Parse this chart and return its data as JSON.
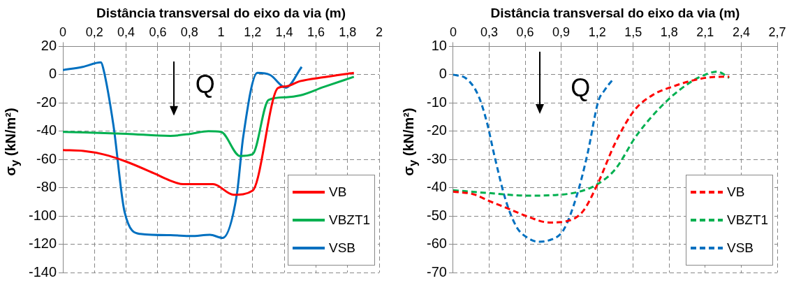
{
  "chart_data": [
    {
      "type": "line",
      "xlabel": "Distância transversal do eixo da via (m)",
      "ylabel": "σ$_{y}$ (kN/m²)",
      "annotations": [
        "Q"
      ],
      "xlim": [
        0,
        2
      ],
      "xticks": [
        0,
        {
          "value": 0.2,
          "label": "0,2"
        },
        {
          "value": 0.4,
          "label": "0,4"
        },
        {
          "value": 0.6,
          "label": "0,6"
        },
        {
          "value": 0.8,
          "label": "0,8"
        },
        1,
        {
          "value": 1.2,
          "label": "1,2"
        },
        {
          "value": 1.4,
          "label": "1,4"
        },
        {
          "value": 1.6,
          "label": "1,6"
        },
        {
          "value": 1.8,
          "label": "1,8"
        },
        2
      ],
      "ylim": [
        -140,
        20
      ],
      "yticks": [
        -140,
        -120,
        -100,
        -80,
        -60,
        -40,
        -20,
        0,
        20
      ],
      "grid": true,
      "legend": "bottom right",
      "marker": "none",
      "line_style": "solid",
      "series": [
        {
          "name": "VB",
          "color": "#ff0000",
          "x": [
            0,
            0.13,
            0.26,
            0.4,
            0.58,
            0.68,
            0.76,
            0.95,
            1.08,
            1.2,
            1.36,
            1.41,
            1.5,
            1.65,
            1.84
          ],
          "values": [
            -53.4,
            -54,
            -56.5,
            -61.5,
            -70,
            -75,
            -77.5,
            -77.5,
            -85,
            -82,
            -9.5,
            -8.3,
            -4.6,
            -1.8,
            1.3
          ]
        },
        {
          "name": "VBZT1",
          "color": "#00b050",
          "x": [
            0,
            0.4,
            0.68,
            0.81,
            0.92,
            1.0,
            1.12,
            1.2,
            1.3,
            1.41,
            1.5,
            1.65,
            1.84
          ],
          "values": [
            -40.5,
            -41.8,
            -43.3,
            -41.8,
            -40,
            -40.5,
            -57.5,
            -56.2,
            -17.9,
            -16,
            -14.7,
            -8.7,
            -1.5
          ]
        },
        {
          "name": "VSB",
          "color": "#0070c0",
          "x": [
            0,
            0.125,
            0.24,
            0.255,
            0.32,
            0.39,
            0.49,
            0.68,
            0.81,
            0.93,
            1.01,
            1.1,
            1.14,
            1.23,
            1.31,
            1.41,
            1.51
          ],
          "values": [
            3.3,
            5.5,
            8.7,
            4.6,
            -36,
            -97,
            -112.7,
            -113.6,
            -114.2,
            -113.3,
            -115.5,
            -84.7,
            -44.2,
            1.3,
            -0.2,
            -9.2,
            5.5
          ]
        }
      ]
    },
    {
      "type": "line",
      "xlabel": "Distância transversal do eixo da via (m)",
      "ylabel": "σ$_{y}$ (kN/m²)",
      "annotations": [
        "Q"
      ],
      "xlim": [
        0,
        2.7
      ],
      "xticks": [
        0,
        {
          "value": 0.3,
          "label": "0,3"
        },
        {
          "value": 0.6,
          "label": "0,6"
        },
        {
          "value": 0.9,
          "label": "0,9"
        },
        {
          "value": 1.2,
          "label": "1,2"
        },
        {
          "value": 1.5,
          "label": "1,5"
        },
        {
          "value": 1.8,
          "label": "1,8"
        },
        {
          "value": 2.1,
          "label": "2,1"
        },
        {
          "value": 2.4,
          "label": "2,4"
        },
        {
          "value": 2.7,
          "label": "2,7"
        }
      ],
      "ylim": [
        -70,
        10
      ],
      "yticks": [
        -70,
        -60,
        -50,
        -40,
        -30,
        -20,
        -10,
        0,
        10
      ],
      "grid": true,
      "legend": "bottom right",
      "marker": "none",
      "line_style": "dashed",
      "series": [
        {
          "name": "VB",
          "color": "#ff0000",
          "x": [
            0,
            0.17,
            0.3,
            0.46,
            0.62,
            0.8,
            0.94,
            1.08,
            1.2,
            1.35,
            1.51,
            1.67,
            1.83,
            1.99,
            2.15,
            2.3
          ],
          "values": [
            -41.4,
            -42.3,
            -44.7,
            -47.4,
            -50.2,
            -52.3,
            -51.9,
            -48.4,
            -39,
            -24.2,
            -12.6,
            -7,
            -4.2,
            -2.1,
            -0.9,
            -0.7
          ]
        },
        {
          "name": "VBZT1",
          "color": "#00b050",
          "x": [
            0,
            0.3,
            0.62,
            0.85,
            1.05,
            1.2,
            1.35,
            1.53,
            1.78,
            1.99,
            2.1,
            2.2,
            2.3
          ],
          "values": [
            -40.9,
            -41.9,
            -42.8,
            -42.6,
            -41.4,
            -38.8,
            -33.5,
            -21.4,
            -9.3,
            -2.3,
            0,
            1.1,
            -1.1
          ]
        },
        {
          "name": "VSB",
          "color": "#0070c0",
          "x": [
            0,
            0.11,
            0.21,
            0.28,
            0.35,
            0.44,
            0.53,
            0.62,
            0.71,
            0.8,
            0.92,
            1.03,
            1.12,
            1.21,
            1.26,
            1.33
          ],
          "values": [
            0,
            -1.4,
            -7.4,
            -16.7,
            -29.8,
            -44.7,
            -54,
            -57.7,
            -59.1,
            -58.6,
            -54.9,
            -42.8,
            -27.9,
            -9.3,
            -5.6,
            -1.7
          ]
        }
      ]
    }
  ]
}
